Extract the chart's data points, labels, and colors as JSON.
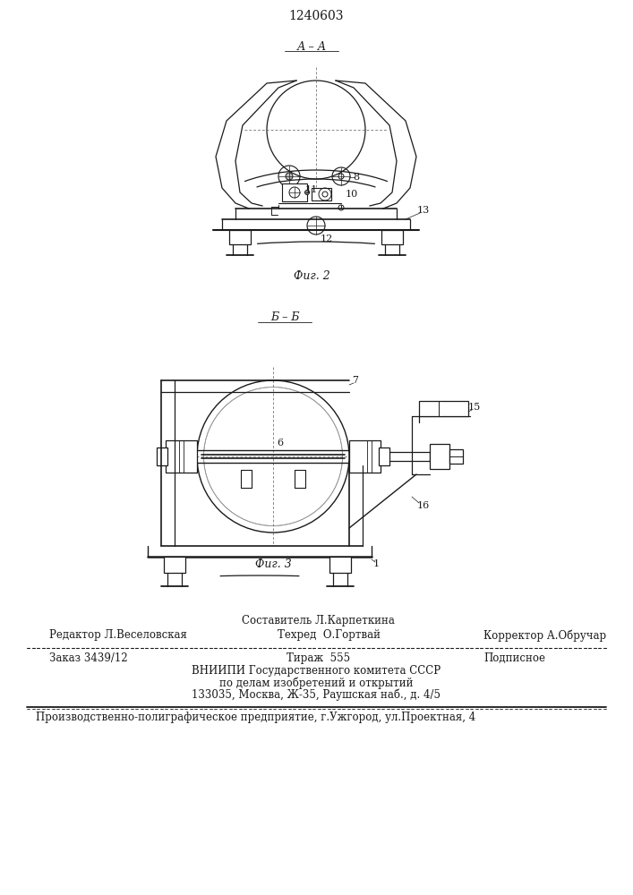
{
  "patent_number": "1240603",
  "background_color": "#ffffff",
  "text_color": "#1a1a1a",
  "fig2_label": "А – А",
  "fig2_caption": "Фиг. 2",
  "fig3_label": "Б – Б",
  "fig3_caption": "Фиг. 3",
  "footer_composer": "Составитель Л.Карпеткина",
  "footer_editor": "Редактор Л.Веселовская",
  "footer_techred": "Техред  О.Гортвай",
  "footer_corrector": "Корректор А.Обручар",
  "footer_order": "Заказ 3439/12",
  "footer_copies": "Тираж  555",
  "footer_signed": "Подписное",
  "footer_vniip1": "ВНИИПИ Государственного комитета СССР",
  "footer_vniip2": "по делам изобретений и открытий",
  "footer_vniip3": "133035, Москва, Ж-35, Раушская наб., д. 4/5",
  "footer_plant": "Производственно-полиграфическое предприятие, г.Ужгород, ул.Проектная, 4"
}
